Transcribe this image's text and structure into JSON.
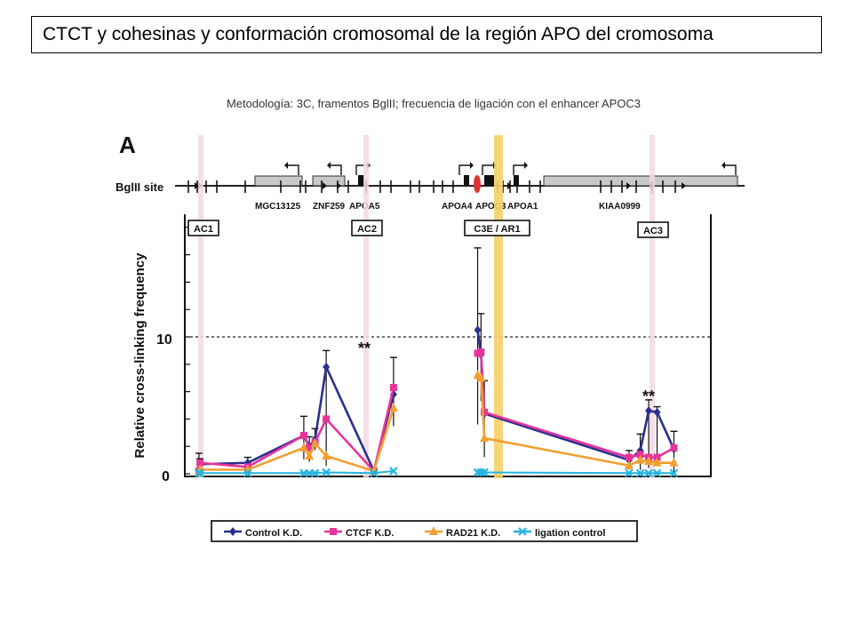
{
  "slide": {
    "title": "CTCT y cohesinas y conformación cromosomal de la región APO del cromosoma",
    "subtitle": "Metodología: 3C, framentos BglII; frecuencia de ligación con el enhancer APOC3"
  },
  "chart_data": {
    "type": "line",
    "panel_label": "A",
    "site_label": "BglII site",
    "ylabel": "Relative cross-linking frequency",
    "yticks": [
      "0",
      "10"
    ],
    "ylim": [
      0,
      26
    ],
    "reference_line": 10,
    "genes": [
      "MGC13125",
      "ZNF259",
      "APOA5",
      "APOA4",
      "APOC3",
      "APOA1",
      "KIAA0999"
    ],
    "regions": [
      "AC1",
      "AC2",
      "C3E / AR1",
      "AC3"
    ],
    "annotations": [
      "**",
      "**"
    ],
    "x": [
      0.3,
      0.5,
      9,
      19,
      20,
      21,
      23,
      31.5,
      35,
      50,
      50.6,
      51.2,
      77,
      79,
      80.5,
      82,
      85
    ],
    "series": [
      {
        "name": "Control K.D.",
        "color": "#2b2f8f",
        "marker": "diamond",
        "values": [
          0.3,
          0.7,
          0.8,
          2.8,
          2.0,
          2.5,
          7.8,
          0.2,
          5.8,
          10.5,
          8.7,
          4.4,
          1.0,
          1.7,
          4.6,
          4.5,
          1.8
        ]
      },
      {
        "name": "CTCF K.D.",
        "color": "#e8339a",
        "marker": "square",
        "values": [
          0.2,
          0.8,
          0.5,
          2.8,
          1.9,
          2.3,
          4.0,
          0.2,
          6.3,
          8.8,
          8.9,
          4.5,
          1.2,
          1.4,
          1.2,
          1.2,
          1.9
        ]
      },
      {
        "name": "RAD21 K.D.",
        "color": "#f0a030",
        "marker": "triangle",
        "values": [
          0.1,
          0.3,
          0.3,
          1.9,
          1.3,
          2.2,
          1.3,
          0.2,
          4.8,
          7.2,
          7.0,
          2.6,
          0.6,
          1.0,
          0.9,
          0.8,
          0.8
        ]
      },
      {
        "name": "ligation control",
        "color": "#22b4e0",
        "marker": "x",
        "values": [
          0.05,
          0.05,
          0.05,
          0.05,
          0.05,
          0.05,
          0.1,
          0.05,
          0.2,
          0.1,
          0.1,
          0.1,
          0.05,
          0.05,
          0.05,
          0.05,
          0.05
        ]
      }
    ]
  },
  "legend": {
    "items": [
      "Control K.D.",
      "CTCF K.D.",
      "RAD21 K.D.",
      "ligation control"
    ]
  }
}
